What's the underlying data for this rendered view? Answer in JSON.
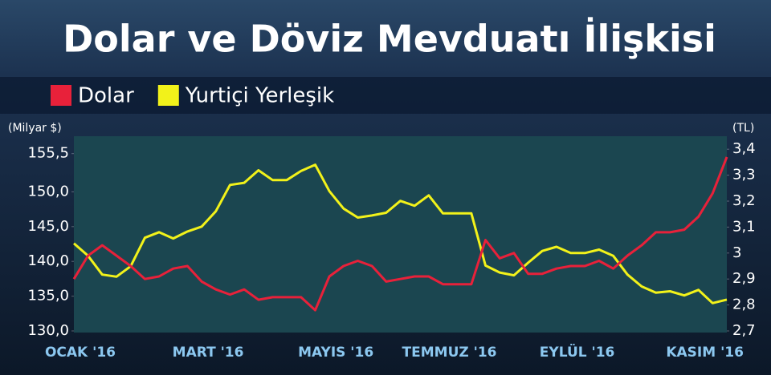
{
  "chart_data": {
    "type": "line",
    "title": "Dolar ve Döviz Mevduatı İlişkisi",
    "y_label": "(Milyar $)",
    "y2_label": "(TL)",
    "categories": [
      "OCAK '16",
      null,
      null,
      null,
      null,
      null,
      null,
      null,
      null,
      "MART '16",
      null,
      null,
      null,
      null,
      null,
      null,
      null,
      null,
      "MAYIS '16",
      null,
      null,
      null,
      null,
      null,
      null,
      null,
      "TEMMUZ '16",
      null,
      null,
      null,
      null,
      null,
      null,
      null,
      null,
      "EYLÜL '16",
      null,
      null,
      null,
      null,
      null,
      null,
      null,
      null,
      "KASIM '16",
      null,
      null
    ],
    "series": [
      {
        "name": "Dolar",
        "color": "#e8213a",
        "axis": "y2",
        "values": [
          2.9,
          2.99,
          3.03,
          2.99,
          2.95,
          2.9,
          2.91,
          2.94,
          2.95,
          2.89,
          2.86,
          2.84,
          2.86,
          2.82,
          2.83,
          2.83,
          2.83,
          2.78,
          2.91,
          2.95,
          2.97,
          2.95,
          2.89,
          2.9,
          2.91,
          2.91,
          2.88,
          2.88,
          2.88,
          3.05,
          2.98,
          3.0,
          2.92,
          2.92,
          2.94,
          2.95,
          2.95,
          2.97,
          2.94,
          2.99,
          3.03,
          3.08,
          3.08,
          3.09,
          3.14,
          3.23,
          3.37
        ]
      },
      {
        "name": "Yurtiçi Yerleşik",
        "color": "#f2f21a",
        "values": [
          142.6,
          140.8,
          138.1,
          137.8,
          139.3,
          143.4,
          144.2,
          143.3,
          144.3,
          145.0,
          147.2,
          151.0,
          151.3,
          153.1,
          151.7,
          151.7,
          153.0,
          153.9,
          150.1,
          147.6,
          146.3,
          146.6,
          147.0,
          148.7,
          148.0,
          149.5,
          146.9,
          146.9,
          146.9,
          139.4,
          138.4,
          138.0,
          139.8,
          141.5,
          142.1,
          141.2,
          141.2,
          141.7,
          140.8,
          138.1,
          136.4,
          135.5,
          135.7,
          135.1,
          135.9,
          134.0,
          134.5
        ]
      }
    ],
    "ylim": [
      130,
      158
    ],
    "yticks": [
      {
        "value": 130,
        "label": "130,0"
      },
      {
        "value": 135,
        "label": "135,0"
      },
      {
        "value": 140,
        "label": "140,0"
      },
      {
        "value": 145,
        "label": "145,0"
      },
      {
        "value": 150,
        "label": "150,0"
      },
      {
        "value": 155.5,
        "label": "155,5"
      }
    ],
    "y2lim": [
      2.7,
      3.45
    ],
    "y2ticks": [
      {
        "value": 2.7,
        "label": "2,7"
      },
      {
        "value": 2.8,
        "label": "2,8"
      },
      {
        "value": 2.9,
        "label": "2,9"
      },
      3,
      {
        "value": 3.1,
        "label": "3,1"
      },
      {
        "value": 3.2,
        "label": "3,2"
      },
      {
        "value": 3.3,
        "label": "3,3"
      },
      {
        "value": 3.4,
        "label": "3,4"
      }
    ],
    "grid": false
  }
}
